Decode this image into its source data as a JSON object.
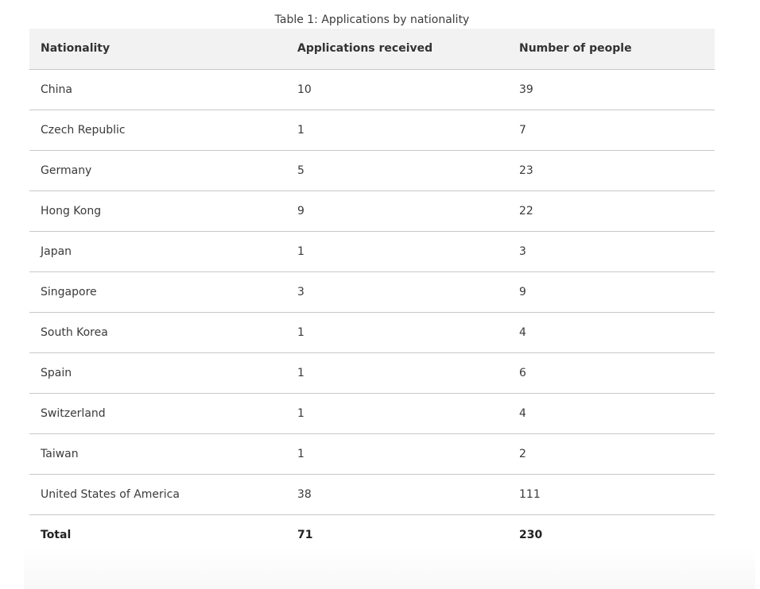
{
  "table": {
    "caption": "Table 1: Applications by nationality",
    "headers": [
      "Nationality",
      "Applications received",
      "Number of people"
    ],
    "rows": [
      {
        "nationality": "China",
        "applications": "10",
        "people": "39"
      },
      {
        "nationality": "Czech Republic",
        "applications": "1",
        "people": "7"
      },
      {
        "nationality": "Germany",
        "applications": "5",
        "people": "23"
      },
      {
        "nationality": "Hong Kong",
        "applications": "9",
        "people": "22"
      },
      {
        "nationality": "Japan",
        "applications": "1",
        "people": "3"
      },
      {
        "nationality": "Singapore",
        "applications": "3",
        "people": "9"
      },
      {
        "nationality": "South Korea",
        "applications": "1",
        "people": "4"
      },
      {
        "nationality": "Spain",
        "applications": "1",
        "people": "6"
      },
      {
        "nationality": "Switzerland",
        "applications": "1",
        "people": "4"
      },
      {
        "nationality": "Taiwan",
        "applications": "1",
        "people": "2"
      },
      {
        "nationality": "United States of America",
        "applications": "38",
        "people": "111"
      }
    ],
    "total": {
      "label": "Total",
      "applications": "71",
      "people": "230"
    }
  }
}
